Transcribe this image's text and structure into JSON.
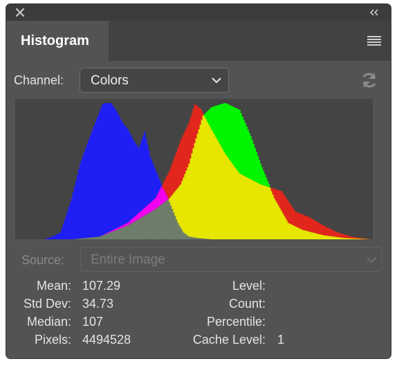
{
  "panel": {
    "tab_title": "Histogram",
    "close_icon": "close-icon",
    "collapse_icon": "double-chevron-left-icon",
    "menu_icon": "panel-menu-icon"
  },
  "channel": {
    "label": "Channel:",
    "value": "Colors",
    "refresh_icon": "refresh-icon"
  },
  "source": {
    "label": "Source:",
    "value": "Entire Image"
  },
  "stats": {
    "mean_label": "Mean:",
    "mean_value": "107.29",
    "stddev_label": "Std Dev:",
    "stddev_value": "34.73",
    "median_label": "Median:",
    "median_value": "107",
    "pixels_label": "Pixels:",
    "pixels_value": "4494528",
    "level_label": "Level:",
    "level_value": "",
    "count_label": "Count:",
    "count_value": "",
    "percentile_label": "Percentile:",
    "percentile_value": "",
    "cache_label": "Cache Level:",
    "cache_value": "1"
  },
  "colors": {
    "red": "#e1261c",
    "green": "#00f500",
    "blue": "#1f1ff5",
    "yellow": "#e6e600",
    "cyan": "#00e5ef",
    "magenta": "#f000ee",
    "gray": "#6e7d6a"
  },
  "chart_data": {
    "type": "area",
    "x_range": [
      0,
      255
    ],
    "y_range": [
      0,
      1
    ],
    "series": [
      {
        "name": "red",
        "x": [
          0,
          40,
          60,
          80,
          100,
          110,
          118,
          124,
          128,
          132,
          140,
          150,
          160,
          175,
          190,
          200,
          210,
          220,
          230,
          240,
          250,
          255
        ],
        "values": [
          0,
          0,
          0.02,
          0.12,
          0.3,
          0.5,
          0.72,
          0.85,
          0.98,
          0.95,
          0.8,
          0.62,
          0.48,
          0.4,
          0.35,
          0.2,
          0.16,
          0.1,
          0.05,
          0.02,
          0.005,
          0
        ]
      },
      {
        "name": "green",
        "x": [
          0,
          40,
          60,
          80,
          100,
          110,
          118,
          124,
          128,
          134,
          140,
          146,
          150,
          156,
          160,
          168,
          175,
          185,
          195,
          205,
          220,
          235,
          255
        ],
        "values": [
          0,
          0,
          0.02,
          0.1,
          0.22,
          0.3,
          0.4,
          0.55,
          0.7,
          0.9,
          0.96,
          0.98,
          0.99,
          0.96,
          0.94,
          0.75,
          0.55,
          0.3,
          0.12,
          0.07,
          0.03,
          0.01,
          0
        ]
      },
      {
        "name": "blue",
        "x": [
          0,
          20,
          26,
          32,
          40,
          46,
          52,
          58,
          62,
          64,
          68,
          72,
          76,
          80,
          84,
          88,
          92,
          96,
          100,
          104,
          108,
          112,
          116,
          120,
          124,
          130,
          140,
          160,
          255
        ],
        "values": [
          0,
          0,
          0.02,
          0.05,
          0.3,
          0.55,
          0.72,
          0.88,
          0.98,
          0.99,
          0.99,
          0.93,
          0.85,
          0.8,
          0.72,
          0.66,
          0.78,
          0.6,
          0.5,
          0.4,
          0.32,
          0.22,
          0.12,
          0.05,
          0.02,
          0.01,
          0,
          0,
          0
        ]
      }
    ]
  }
}
